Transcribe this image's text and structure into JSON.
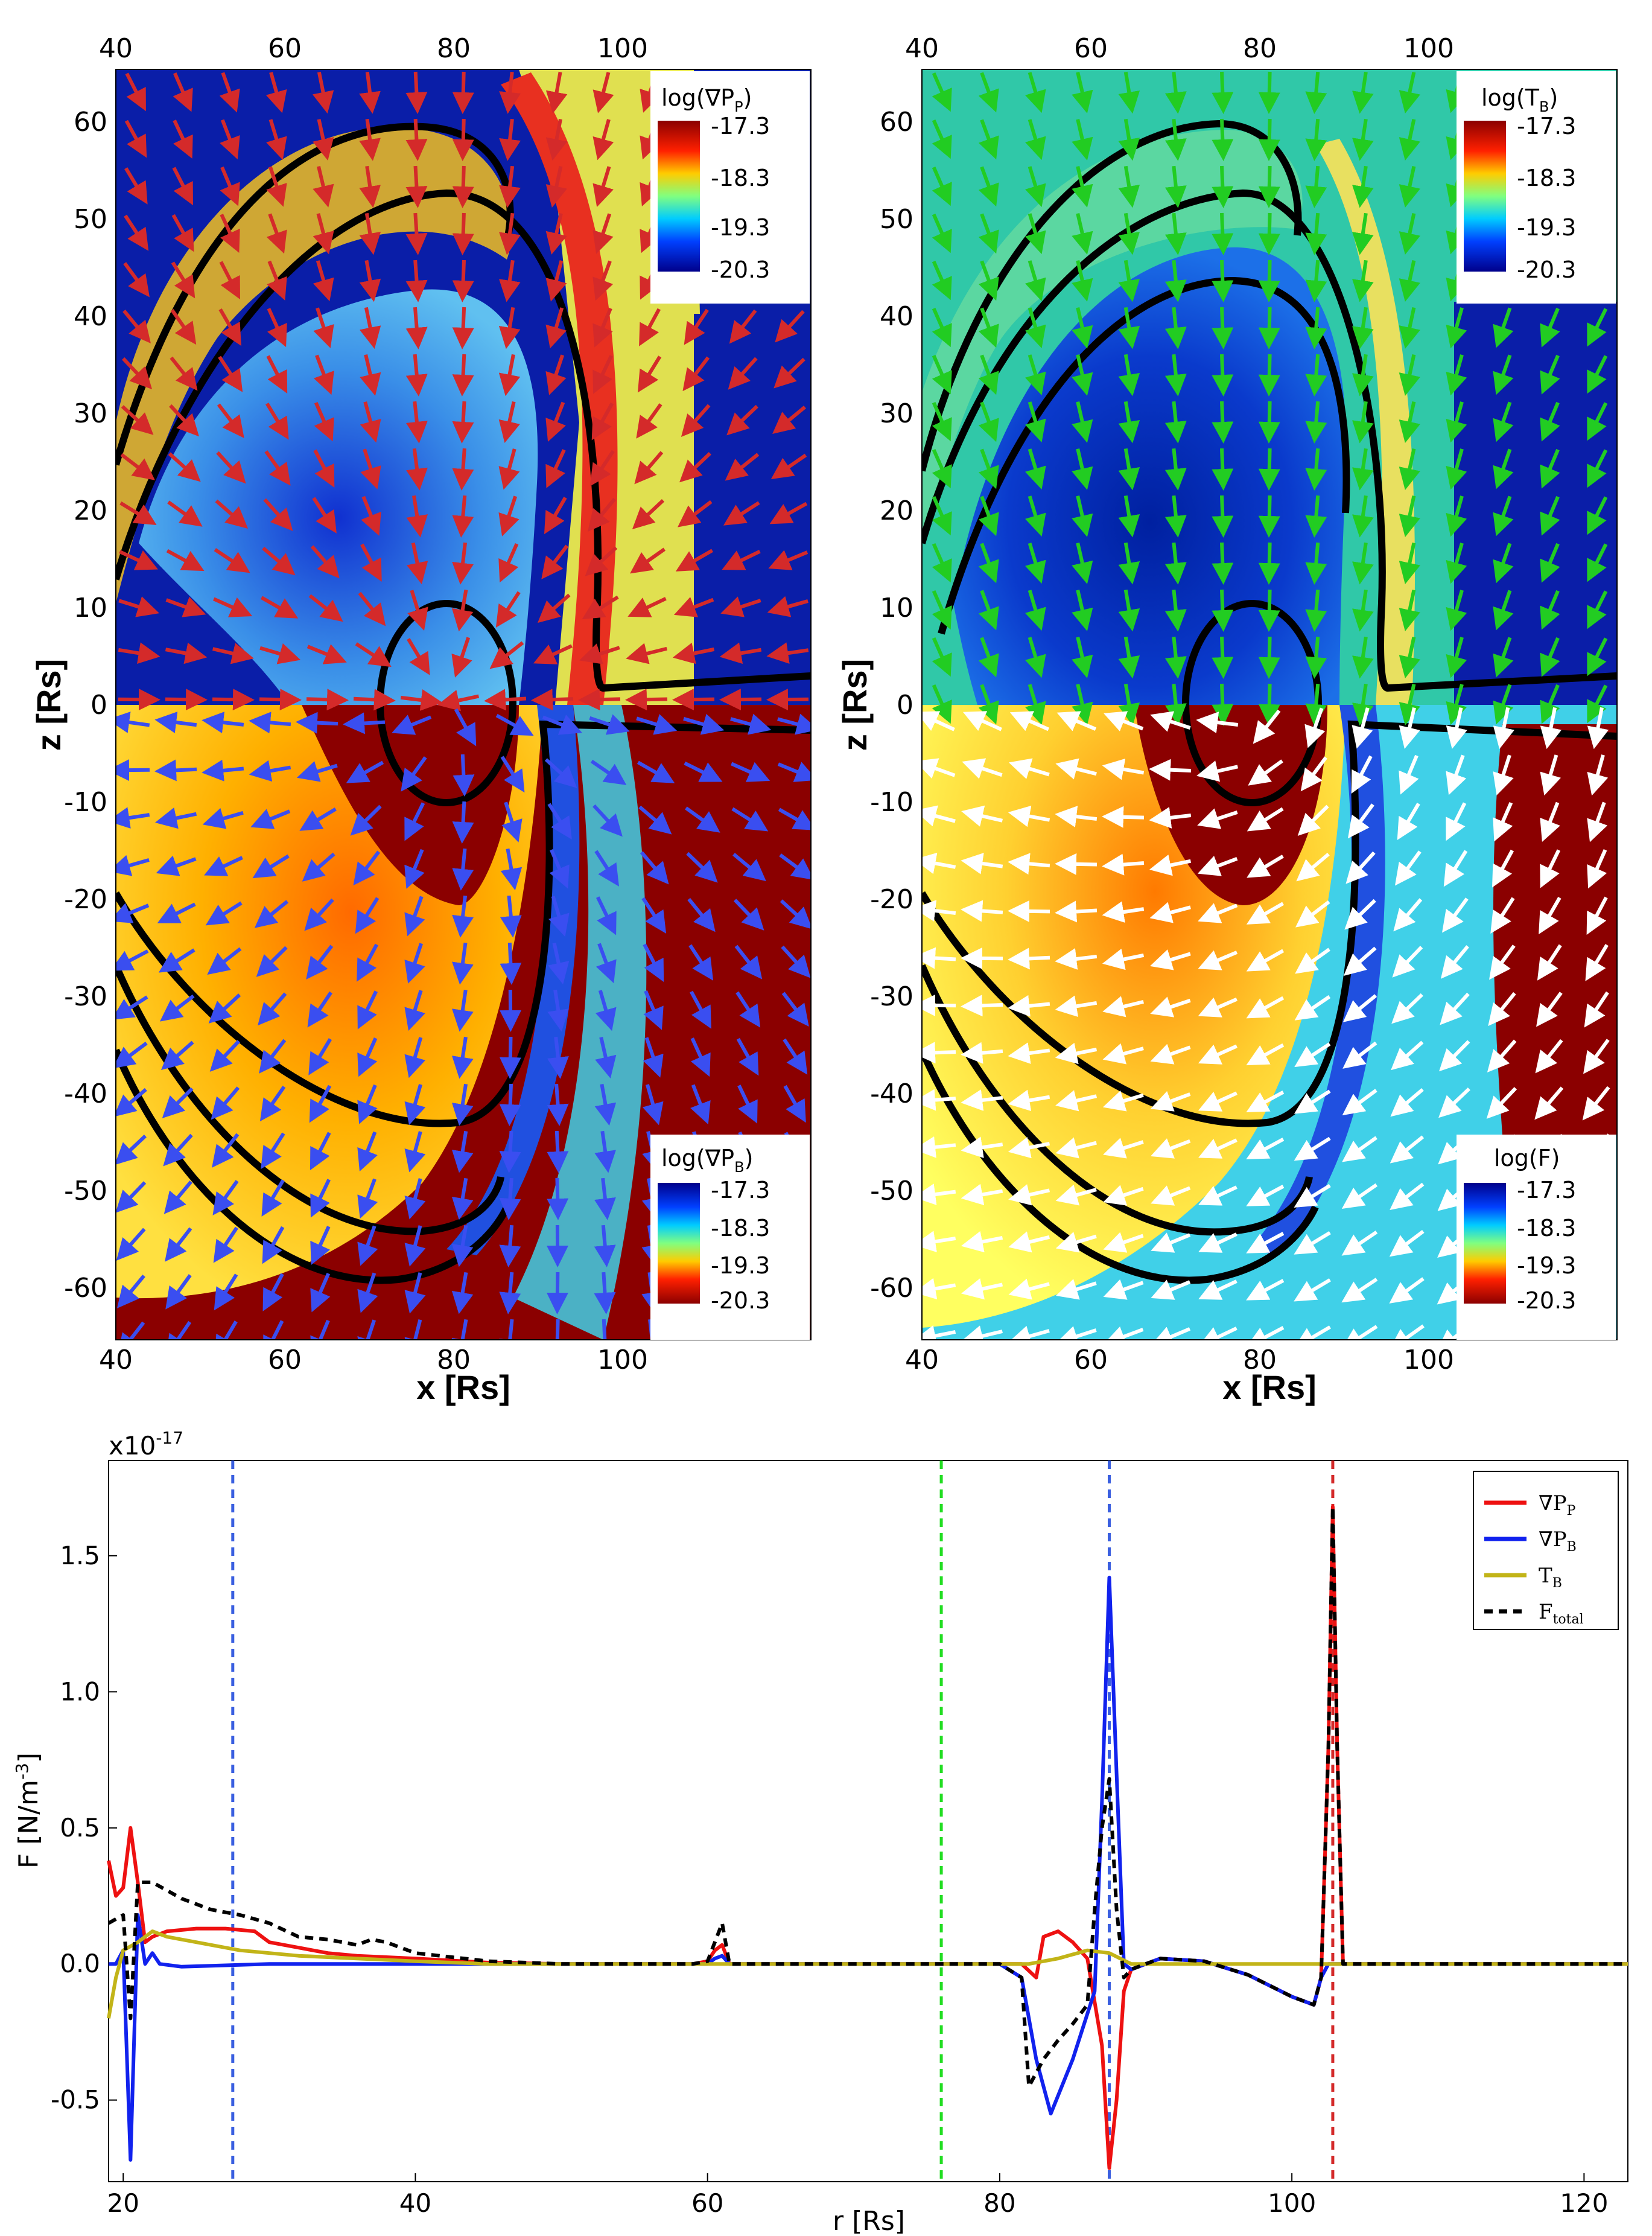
{
  "panels": {
    "top_left": {
      "upper_colorbar": {
        "title": "log(∇P",
        "title_sub": "P",
        "title_end": ")",
        "ticks": [
          "-17.3",
          "-18.3",
          "-19.3",
          "-20.3"
        ]
      },
      "lower_colorbar": {
        "title": "log(∇P",
        "title_sub": "B",
        "title_end": ")",
        "ticks": [
          "-17.3",
          "-18.3",
          "-19.3",
          "-20.3"
        ]
      },
      "upper_arrow_color": "#d42a2a",
      "lower_arrow_color": "#3a4ef0"
    },
    "top_right": {
      "upper_colorbar": {
        "title": "log(T",
        "title_sub": "B",
        "title_end": ")",
        "ticks": [
          "-17.3",
          "-18.3",
          "-19.3",
          "-20.3"
        ]
      },
      "lower_colorbar": {
        "title": "log(F)",
        "title_sub": "",
        "title_end": "",
        "ticks": [
          "-17.3",
          "-18.3",
          "-19.3",
          "-20.3"
        ]
      },
      "upper_arrow_color": "#22cc22",
      "lower_arrow_color": "#ffffff"
    },
    "x_ticks": [
      "40",
      "60",
      "80",
      "100"
    ],
    "z_ticks": [
      "60",
      "50",
      "40",
      "30",
      "20",
      "10",
      "0",
      "-10",
      "-20",
      "-30",
      "-40",
      "-50",
      "-60"
    ],
    "xlabel": "x [Rs]",
    "zlabel": "z [Rs]"
  },
  "chart_data": {
    "type": "line",
    "xlabel": "r [Rs]",
    "ylabel": "F [N/m",
    "ylabel_sup": "-3",
    "ylabel_end": "]",
    "y_multiplier": "x10",
    "y_multiplier_exp": "-17",
    "xlim": [
      19,
      123
    ],
    "ylim": [
      -0.8,
      1.85
    ],
    "x_ticks": [
      "20",
      "40",
      "60",
      "80",
      "100",
      "120"
    ],
    "y_ticks": [
      "1.5",
      "1.0",
      "0.5",
      "0.0",
      "-0.5"
    ],
    "vlines": [
      {
        "x": 27.5,
        "color": "#3a5fe0"
      },
      {
        "x": 76.0,
        "color": "#22dd22"
      },
      {
        "x": 87.5,
        "color": "#3a5fe0"
      },
      {
        "x": 102.8,
        "color": "#d42a2a"
      }
    ],
    "series": [
      {
        "name": "∇P",
        "sub": "P",
        "color": "#ee1111",
        "dash": "",
        "points": [
          [
            19,
            0.38
          ],
          [
            19.5,
            0.25
          ],
          [
            20,
            0.28
          ],
          [
            20.5,
            0.5
          ],
          [
            21,
            0.3
          ],
          [
            21.5,
            0.08
          ],
          [
            22,
            0.1
          ],
          [
            23,
            0.12
          ],
          [
            25,
            0.13
          ],
          [
            27,
            0.13
          ],
          [
            29,
            0.12
          ],
          [
            30,
            0.08
          ],
          [
            32,
            0.06
          ],
          [
            34,
            0.04
          ],
          [
            36,
            0.03
          ],
          [
            40,
            0.02
          ],
          [
            45,
            0.005
          ],
          [
            50,
            0.0
          ],
          [
            55,
            0.0
          ],
          [
            59,
            0.0
          ],
          [
            60,
            0.01
          ],
          [
            60.5,
            0.05
          ],
          [
            61,
            0.07
          ],
          [
            61.5,
            0.0
          ],
          [
            65,
            0.0
          ],
          [
            80,
            0.0
          ],
          [
            81.5,
            0.0
          ],
          [
            82.5,
            -0.05
          ],
          [
            83,
            0.1
          ],
          [
            84,
            0.12
          ],
          [
            85,
            0.08
          ],
          [
            86,
            0.02
          ],
          [
            87,
            -0.3
          ],
          [
            87.5,
            -0.75
          ],
          [
            88,
            -0.5
          ],
          [
            88.5,
            -0.1
          ],
          [
            89,
            -0.02
          ],
          [
            90,
            0.0
          ],
          [
            91,
            0.02
          ],
          [
            94,
            0.01
          ],
          [
            97,
            -0.04
          ],
          [
            100,
            -0.12
          ],
          [
            101.5,
            -0.15
          ],
          [
            102,
            -0.05
          ],
          [
            102.5,
            0.8
          ],
          [
            102.8,
            1.68
          ],
          [
            103.1,
            0.8
          ],
          [
            103.5,
            0.0
          ],
          [
            123,
            0.0
          ]
        ]
      },
      {
        "name": "∇P",
        "sub": "B",
        "color": "#1122ee",
        "dash": "",
        "points": [
          [
            19,
            0.0
          ],
          [
            19.5,
            0.0
          ],
          [
            20,
            0.05
          ],
          [
            20.5,
            -0.72
          ],
          [
            21,
            0.18
          ],
          [
            21.5,
            0.0
          ],
          [
            22,
            0.04
          ],
          [
            22.5,
            0.0
          ],
          [
            24,
            -0.01
          ],
          [
            30,
            0.0
          ],
          [
            40,
            0.0
          ],
          [
            50,
            0.0
          ],
          [
            60,
            0.0
          ],
          [
            60.5,
            0.02
          ],
          [
            61,
            0.03
          ],
          [
            61.5,
            0.0
          ],
          [
            80,
            0.0
          ],
          [
            81.5,
            -0.05
          ],
          [
            82.5,
            -0.35
          ],
          [
            83.5,
            -0.55
          ],
          [
            85,
            -0.35
          ],
          [
            86.5,
            -0.1
          ],
          [
            87,
            0.6
          ],
          [
            87.5,
            1.42
          ],
          [
            88,
            0.7
          ],
          [
            88.5,
            0.0
          ],
          [
            89,
            -0.02
          ],
          [
            90,
            0.0
          ],
          [
            91,
            0.02
          ],
          [
            94,
            0.01
          ],
          [
            97,
            -0.04
          ],
          [
            100,
            -0.12
          ],
          [
            101.5,
            -0.15
          ],
          [
            102,
            -0.05
          ],
          [
            102.5,
            0.0
          ],
          [
            123,
            0.0
          ]
        ]
      },
      {
        "name": "T",
        "sub": "B",
        "color": "#c2b418",
        "dash": "",
        "points": [
          [
            19,
            -0.2
          ],
          [
            19.5,
            -0.05
          ],
          [
            20,
            0.05
          ],
          [
            21,
            0.08
          ],
          [
            22,
            0.12
          ],
          [
            23,
            0.1
          ],
          [
            25,
            0.08
          ],
          [
            28,
            0.05
          ],
          [
            32,
            0.03
          ],
          [
            36,
            0.02
          ],
          [
            40,
            0.01
          ],
          [
            45,
            0.0
          ],
          [
            60,
            0.0
          ],
          [
            80,
            0.0
          ],
          [
            82,
            0.0
          ],
          [
            84,
            0.02
          ],
          [
            86,
            0.05
          ],
          [
            87.5,
            0.04
          ],
          [
            89,
            0.0
          ],
          [
            95,
            0.0
          ],
          [
            123,
            0.0
          ]
        ]
      },
      {
        "name": "F",
        "sub": "total",
        "color": "#000000",
        "dash": "14,10",
        "points": [
          [
            19,
            0.15
          ],
          [
            20,
            0.18
          ],
          [
            20.5,
            -0.2
          ],
          [
            21,
            0.3
          ],
          [
            22,
            0.3
          ],
          [
            24,
            0.24
          ],
          [
            26,
            0.2
          ],
          [
            28,
            0.18
          ],
          [
            30,
            0.15
          ],
          [
            32,
            0.1
          ],
          [
            34,
            0.09
          ],
          [
            36,
            0.07
          ],
          [
            37,
            0.09
          ],
          [
            38,
            0.08
          ],
          [
            40,
            0.04
          ],
          [
            45,
            0.01
          ],
          [
            50,
            0.0
          ],
          [
            59,
            0.0
          ],
          [
            60,
            0.01
          ],
          [
            60.5,
            0.08
          ],
          [
            61,
            0.15
          ],
          [
            61.5,
            0.0
          ],
          [
            80,
            0.0
          ],
          [
            81.5,
            -0.05
          ],
          [
            82,
            -0.45
          ],
          [
            83,
            -0.35
          ],
          [
            84,
            -0.28
          ],
          [
            85,
            -0.22
          ],
          [
            86,
            -0.15
          ],
          [
            86.5,
            0.2
          ],
          [
            87,
            0.5
          ],
          [
            87.5,
            0.68
          ],
          [
            88,
            0.2
          ],
          [
            88.5,
            -0.05
          ],
          [
            89,
            -0.02
          ],
          [
            90,
            0.0
          ],
          [
            91,
            0.02
          ],
          [
            94,
            0.01
          ],
          [
            97,
            -0.04
          ],
          [
            100,
            -0.12
          ],
          [
            101.5,
            -0.15
          ],
          [
            102,
            -0.05
          ],
          [
            102.5,
            0.8
          ],
          [
            102.8,
            1.68
          ],
          [
            103.1,
            0.8
          ],
          [
            103.5,
            0.0
          ],
          [
            123,
            0.0
          ]
        ]
      }
    ]
  }
}
